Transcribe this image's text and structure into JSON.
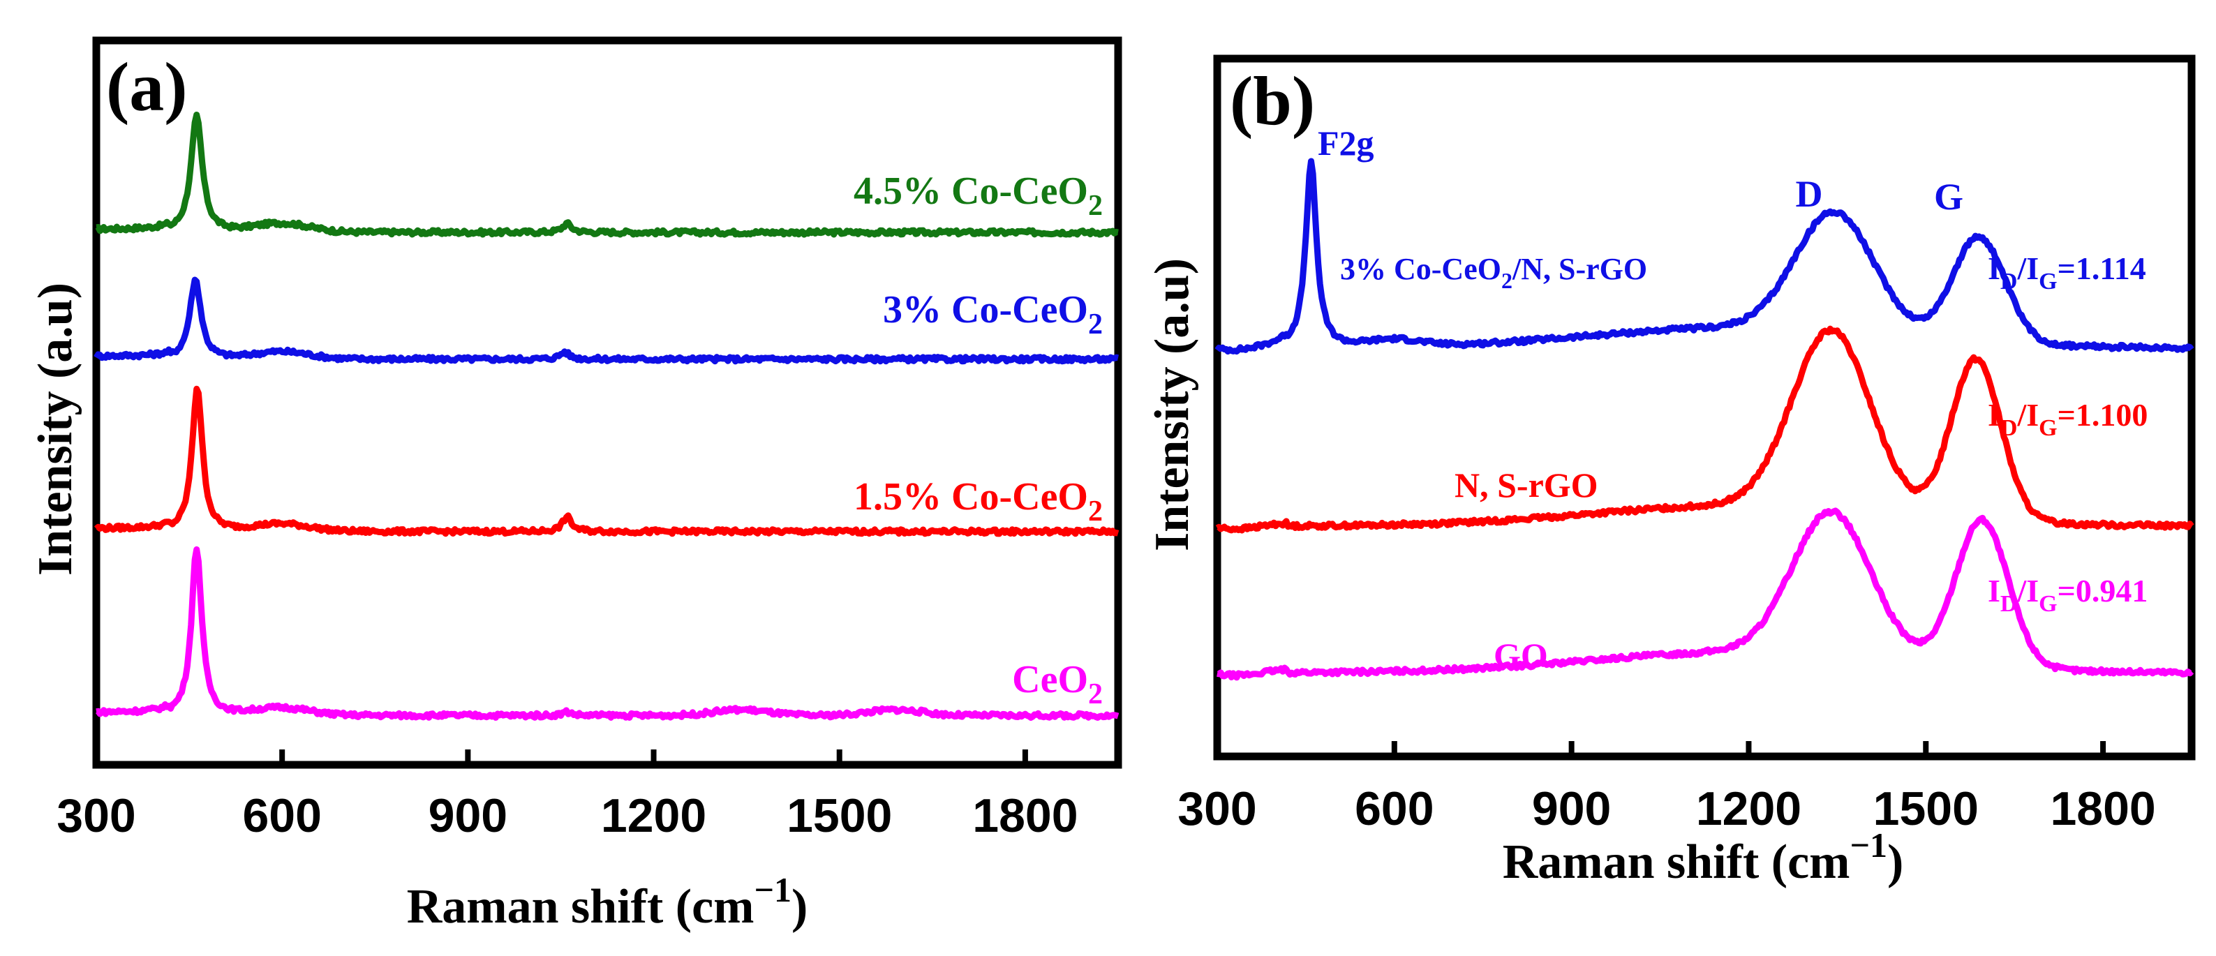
{
  "chart_data": [
    {
      "type": "line",
      "panel": "(a)",
      "xlabel": "Raman shift (cm",
      "xlabel_sup": "−1",
      "xlabel_end": ")",
      "ylabel": "Intensity (a.u)",
      "xlim": [
        300,
        1950
      ],
      "ylim": [
        0,
        1
      ],
      "xticks": [
        300,
        600,
        900,
        1200,
        1500,
        1800
      ],
      "series": [
        {
          "name": "4.5% Co-CeO2",
          "label": "4.5% Co-CeO",
          "sub": "2",
          "color": "#137813",
          "baseline": 0.735,
          "peaks": [
            [
              462,
              0.16,
              11
            ],
            [
              600,
              0.012,
              40
            ],
            [
              1060,
              0.012,
              9
            ]
          ]
        },
        {
          "name": "3% Co-CeO2",
          "label": "3% Co-CeO",
          "sub": "2",
          "color": "#0f0fe6",
          "baseline": 0.56,
          "peaks": [
            [
              460,
              0.11,
              11
            ],
            [
              600,
              0.01,
              40
            ],
            [
              1056,
              0.01,
              9
            ]
          ]
        },
        {
          "name": "1.5% Co-CeO2",
          "label": "1.5% Co-CeO",
          "sub": "2",
          "color": "#ff0000",
          "baseline": 0.322,
          "peaks": [
            [
              463,
              0.2,
              10
            ],
            [
              600,
              0.01,
              40
            ],
            [
              1060,
              0.02,
              9
            ]
          ]
        },
        {
          "name": "CeO2",
          "label": "CeO",
          "sub": "2",
          "color": "#ff00ff",
          "baseline": 0.068,
          "peaks": [
            [
              462,
              0.232,
              10
            ],
            [
              600,
              0.01,
              40
            ],
            [
              1060,
              0.005,
              9
            ],
            [
              1340,
              0.008,
              40
            ],
            [
              1590,
              0.008,
              40
            ]
          ]
        }
      ]
    },
    {
      "type": "line",
      "panel": "(b)",
      "xlabel": "Raman shift (cm",
      "xlabel_sup": "−1",
      "xlabel_end": ")",
      "ylabel": "Intensity (a.u)",
      "xlim": [
        300,
        1950
      ],
      "ylim": [
        0,
        1
      ],
      "xticks": [
        300,
        600,
        900,
        1200,
        1500,
        1800
      ],
      "annotations": {
        "f2g": "F2g",
        "d": "D",
        "g": "G"
      },
      "series": [
        {
          "name": "3% Co-CeO2/N, S-rGO",
          "label": "3% Co-CeO",
          "sub": "2",
          "label_end": "/N, S-rGO",
          "color": "#0f0fe6",
          "ratio_main": "I",
          "ratio_sub1": "D",
          "ratio_mid": "/I",
          "ratio_sub2": "G",
          "ratio_value": "=1.114",
          "id_ig": 1.114,
          "baseline": 0.585,
          "slope": 0.0,
          "peaks": [
            [
              459,
              0.265,
              11
            ],
            [
              1345,
              0.17,
              60
            ],
            [
              1590,
              0.15,
              40
            ],
            [
              600,
              0.01,
              40
            ]
          ]
        },
        {
          "name": "N, S-rGO",
          "label": "N, S-rGO",
          "color": "#ff0000",
          "ratio_main": "I",
          "ratio_sub1": "D",
          "ratio_mid": "/I",
          "ratio_sub2": "G",
          "ratio_value": "=1.100",
          "id_ig": 1.1,
          "baseline": 0.33,
          "slope": 0.0,
          "peaks": [
            [
              1340,
              0.255,
              60
            ],
            [
              1585,
              0.23,
              38
            ]
          ]
        },
        {
          "name": "GO",
          "label": "GO",
          "color": "#ff00ff",
          "ratio_main": "I",
          "ratio_sub1": "D",
          "ratio_mid": "/I",
          "ratio_sub2": "G",
          "ratio_value": "=0.941",
          "id_ig": 0.941,
          "baseline": 0.12,
          "slope": 0.0,
          "peaks": [
            [
              1340,
              0.205,
              60
            ],
            [
              1595,
              0.21,
              40
            ]
          ]
        }
      ]
    }
  ]
}
